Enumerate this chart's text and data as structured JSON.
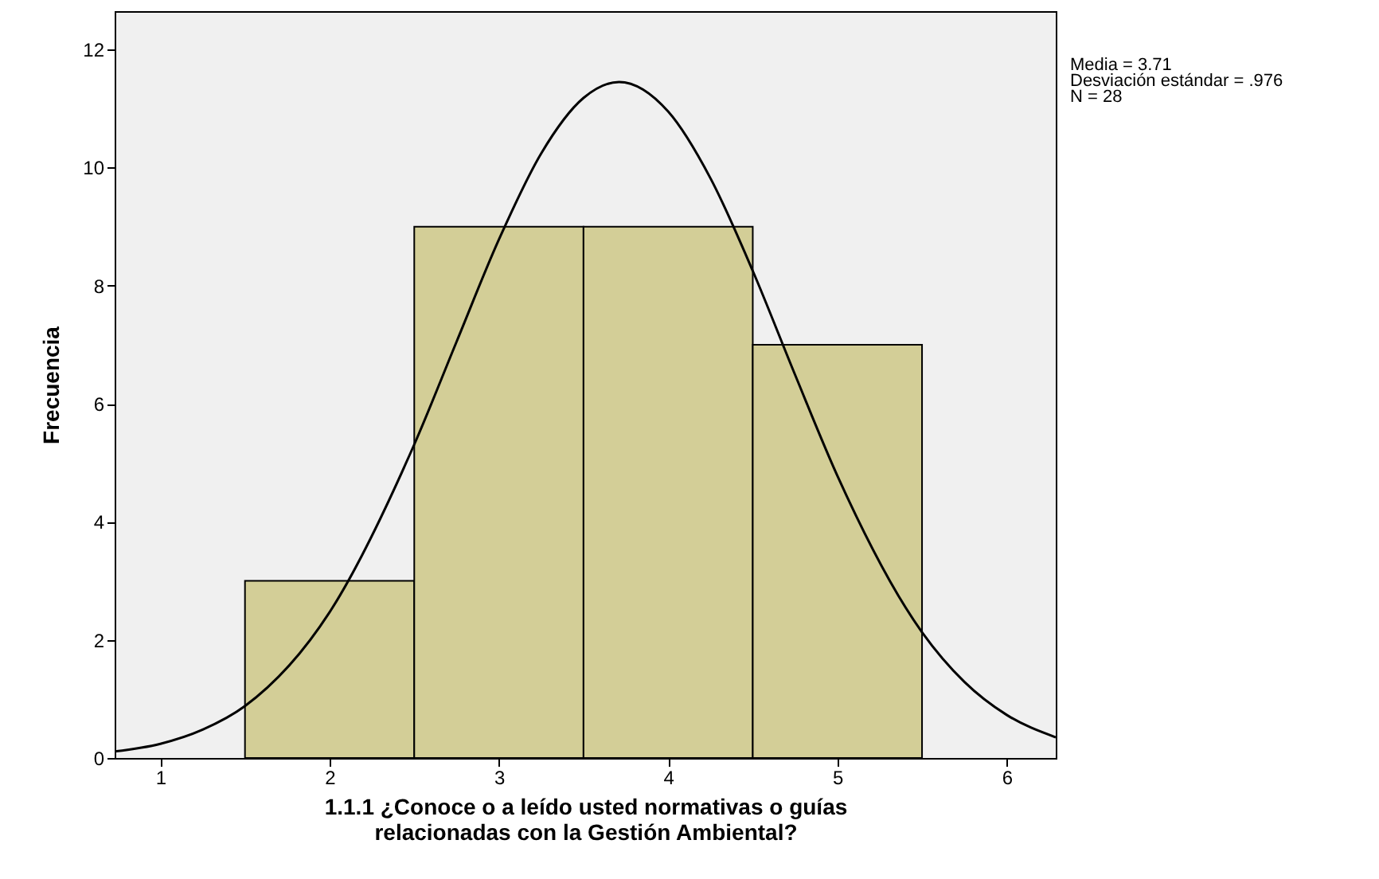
{
  "chart_data": {
    "type": "histogram",
    "xlabel": "1.1.1 ¿Conoce o a leído usted normativas o guías\nrelacionadas con la Gestión Ambiental?",
    "ylabel": "Frecuencia",
    "bins": [
      1.5,
      2.5,
      3.5,
      4.5,
      5.5
    ],
    "values": [
      3,
      9,
      9,
      7
    ],
    "color": "#d3ce97",
    "series": [
      {
        "type": "line",
        "color": "#000000",
        "x": [
          0.73,
          1,
          1.25,
          1.5,
          2,
          2.5,
          2.75,
          3,
          3.25,
          3.5,
          3.71,
          4,
          4.25,
          4.5,
          4.75,
          5,
          5.5,
          5.75,
          6,
          6.29
        ],
        "values": [
          0.11,
          0.24,
          0.48,
          0.88,
          2.47,
          5.31,
          7.05,
          8.78,
          10.24,
          11.18,
          11.45,
          10.95,
          9.82,
          8.25,
          6.49,
          4.78,
          2.13,
          1.29,
          0.73,
          0.35
        ]
      }
    ],
    "xlim": [
      0.73,
      6.29
    ],
    "xticks": [
      1,
      2,
      3,
      4,
      5,
      6
    ],
    "ylim": [
      0,
      12.65
    ],
    "yticks": [
      0,
      2,
      4,
      6,
      8,
      10,
      12
    ],
    "grid": false,
    "annotations": [
      "Media = 3.71",
      "Desviación estándar = .976",
      "N = 28"
    ]
  }
}
